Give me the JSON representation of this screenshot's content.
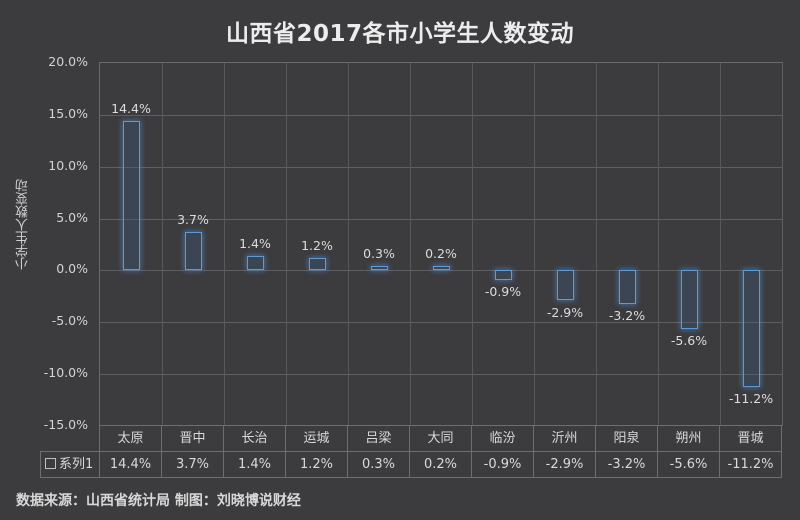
{
  "title": "山西省2017各市小学生人数变动",
  "source_note": "数据来源：山西省统计局 制图：刘晓博说财经",
  "colors": {
    "background": "#3c3b3d",
    "bar_border": "#5a9bd8",
    "grid": "#5f5f62",
    "text": "#d9d9d9"
  },
  "legend": {
    "series_name": "系列1"
  },
  "chart_data": {
    "type": "bar",
    "title": "山西省2017各市小学生人数变动",
    "xlabel": "",
    "ylabel": "小学生人数变动",
    "ylim": [
      -15,
      20
    ],
    "yticks": [
      "20.0%",
      "15.0%",
      "10.0%",
      "5.0%",
      "0.0%",
      "-5.0%",
      "-10.0%",
      "-15.0%"
    ],
    "grid": true,
    "legend_position": "data-table",
    "categories": [
      "太原",
      "晋中",
      "长治",
      "运城",
      "吕梁",
      "大同",
      "临汾",
      "沂州",
      "阳泉",
      "朔州",
      "晋城"
    ],
    "series": [
      {
        "name": "系列1",
        "values": [
          14.4,
          3.7,
          1.4,
          1.2,
          0.3,
          0.2,
          -0.9,
          -2.9,
          -3.2,
          -5.6,
          -11.2
        ],
        "labels": [
          "14.4%",
          "3.7%",
          "1.4%",
          "1.2%",
          "0.3%",
          "0.2%",
          "-0.9%",
          "-2.9%",
          "-3.2%",
          "-5.6%",
          "-11.2%"
        ]
      }
    ]
  }
}
